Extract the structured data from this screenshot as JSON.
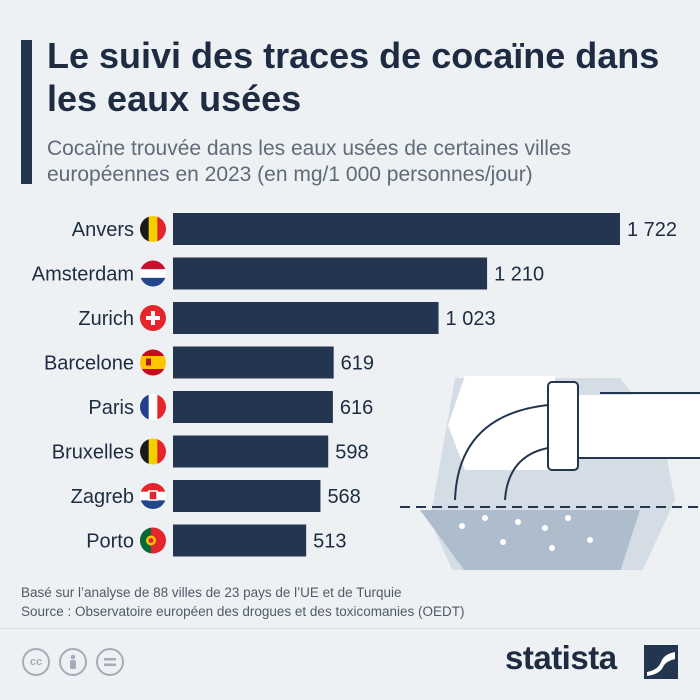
{
  "header": {
    "title": "Le suivi des traces de cocaïne dans les eaux usées",
    "subtitle": "Cocaïne trouvée dans les eaux usées de certaines villes européennes en 2023 (en mg/1 000 personnes/jour)"
  },
  "chart_data": {
    "type": "bar",
    "orientation": "horizontal",
    "categories": [
      "Anvers",
      "Amsterdam",
      "Zurich",
      "Barcelone",
      "Paris",
      "Bruxelles",
      "Zagreb",
      "Porto"
    ],
    "flags": [
      "be-flag-icon",
      "nl-flag-icon",
      "ch-flag-icon",
      "es-flag-icon",
      "fr-flag-icon",
      "be-flag-icon",
      "hr-flag-icon",
      "pt-flag-icon"
    ],
    "values": [
      1722,
      1210,
      1023,
      619,
      616,
      598,
      568,
      513
    ],
    "value_labels": [
      "1 722",
      "1 210",
      "1 023",
      "619",
      "616",
      "598",
      "568",
      "513"
    ],
    "xlim": [
      0,
      1722
    ],
    "bar_color": "#24354f",
    "grid": false,
    "legend": "none"
  },
  "notes": {
    "line1": "Basé sur l’analyse de 88 villes de 23 pays de l’UE et de Turquie",
    "line2": "Source : Observatoire européen des drogues et des toxicomanies (OEDT)"
  },
  "footer": {
    "brand": "statista",
    "license_icons": [
      "cc-icon",
      "attribution-icon",
      "no-derivatives-icon"
    ]
  },
  "colors": {
    "accent": "#24354f",
    "background": "#eef1f4",
    "title": "#1e2c42",
    "subtitle": "#5f6b79"
  }
}
